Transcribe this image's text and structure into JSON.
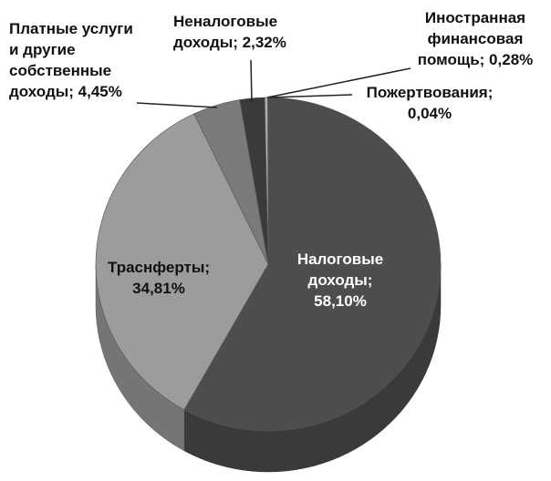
{
  "chart_data": {
    "type": "pie",
    "values": [
      58.1,
      34.81,
      4.45,
      2.32,
      0.28,
      0.04
    ],
    "value_labels": [
      "Налоговые доходы; 58,10%",
      "Траснферты; 34,81%",
      "Платные услуги и другие собственные доходы; 4,45%",
      "Неналоговые доходы; 2,32%",
      "Иностранная финансовая помощь; 0,28%",
      "Пожертвования; 0,04%"
    ],
    "colors": [
      "#4d4d4d",
      "#9c9c9c",
      "#7a7a7a",
      "#3a3a3a",
      "#b0b0b0",
      "#8a8a8a"
    ]
  }
}
